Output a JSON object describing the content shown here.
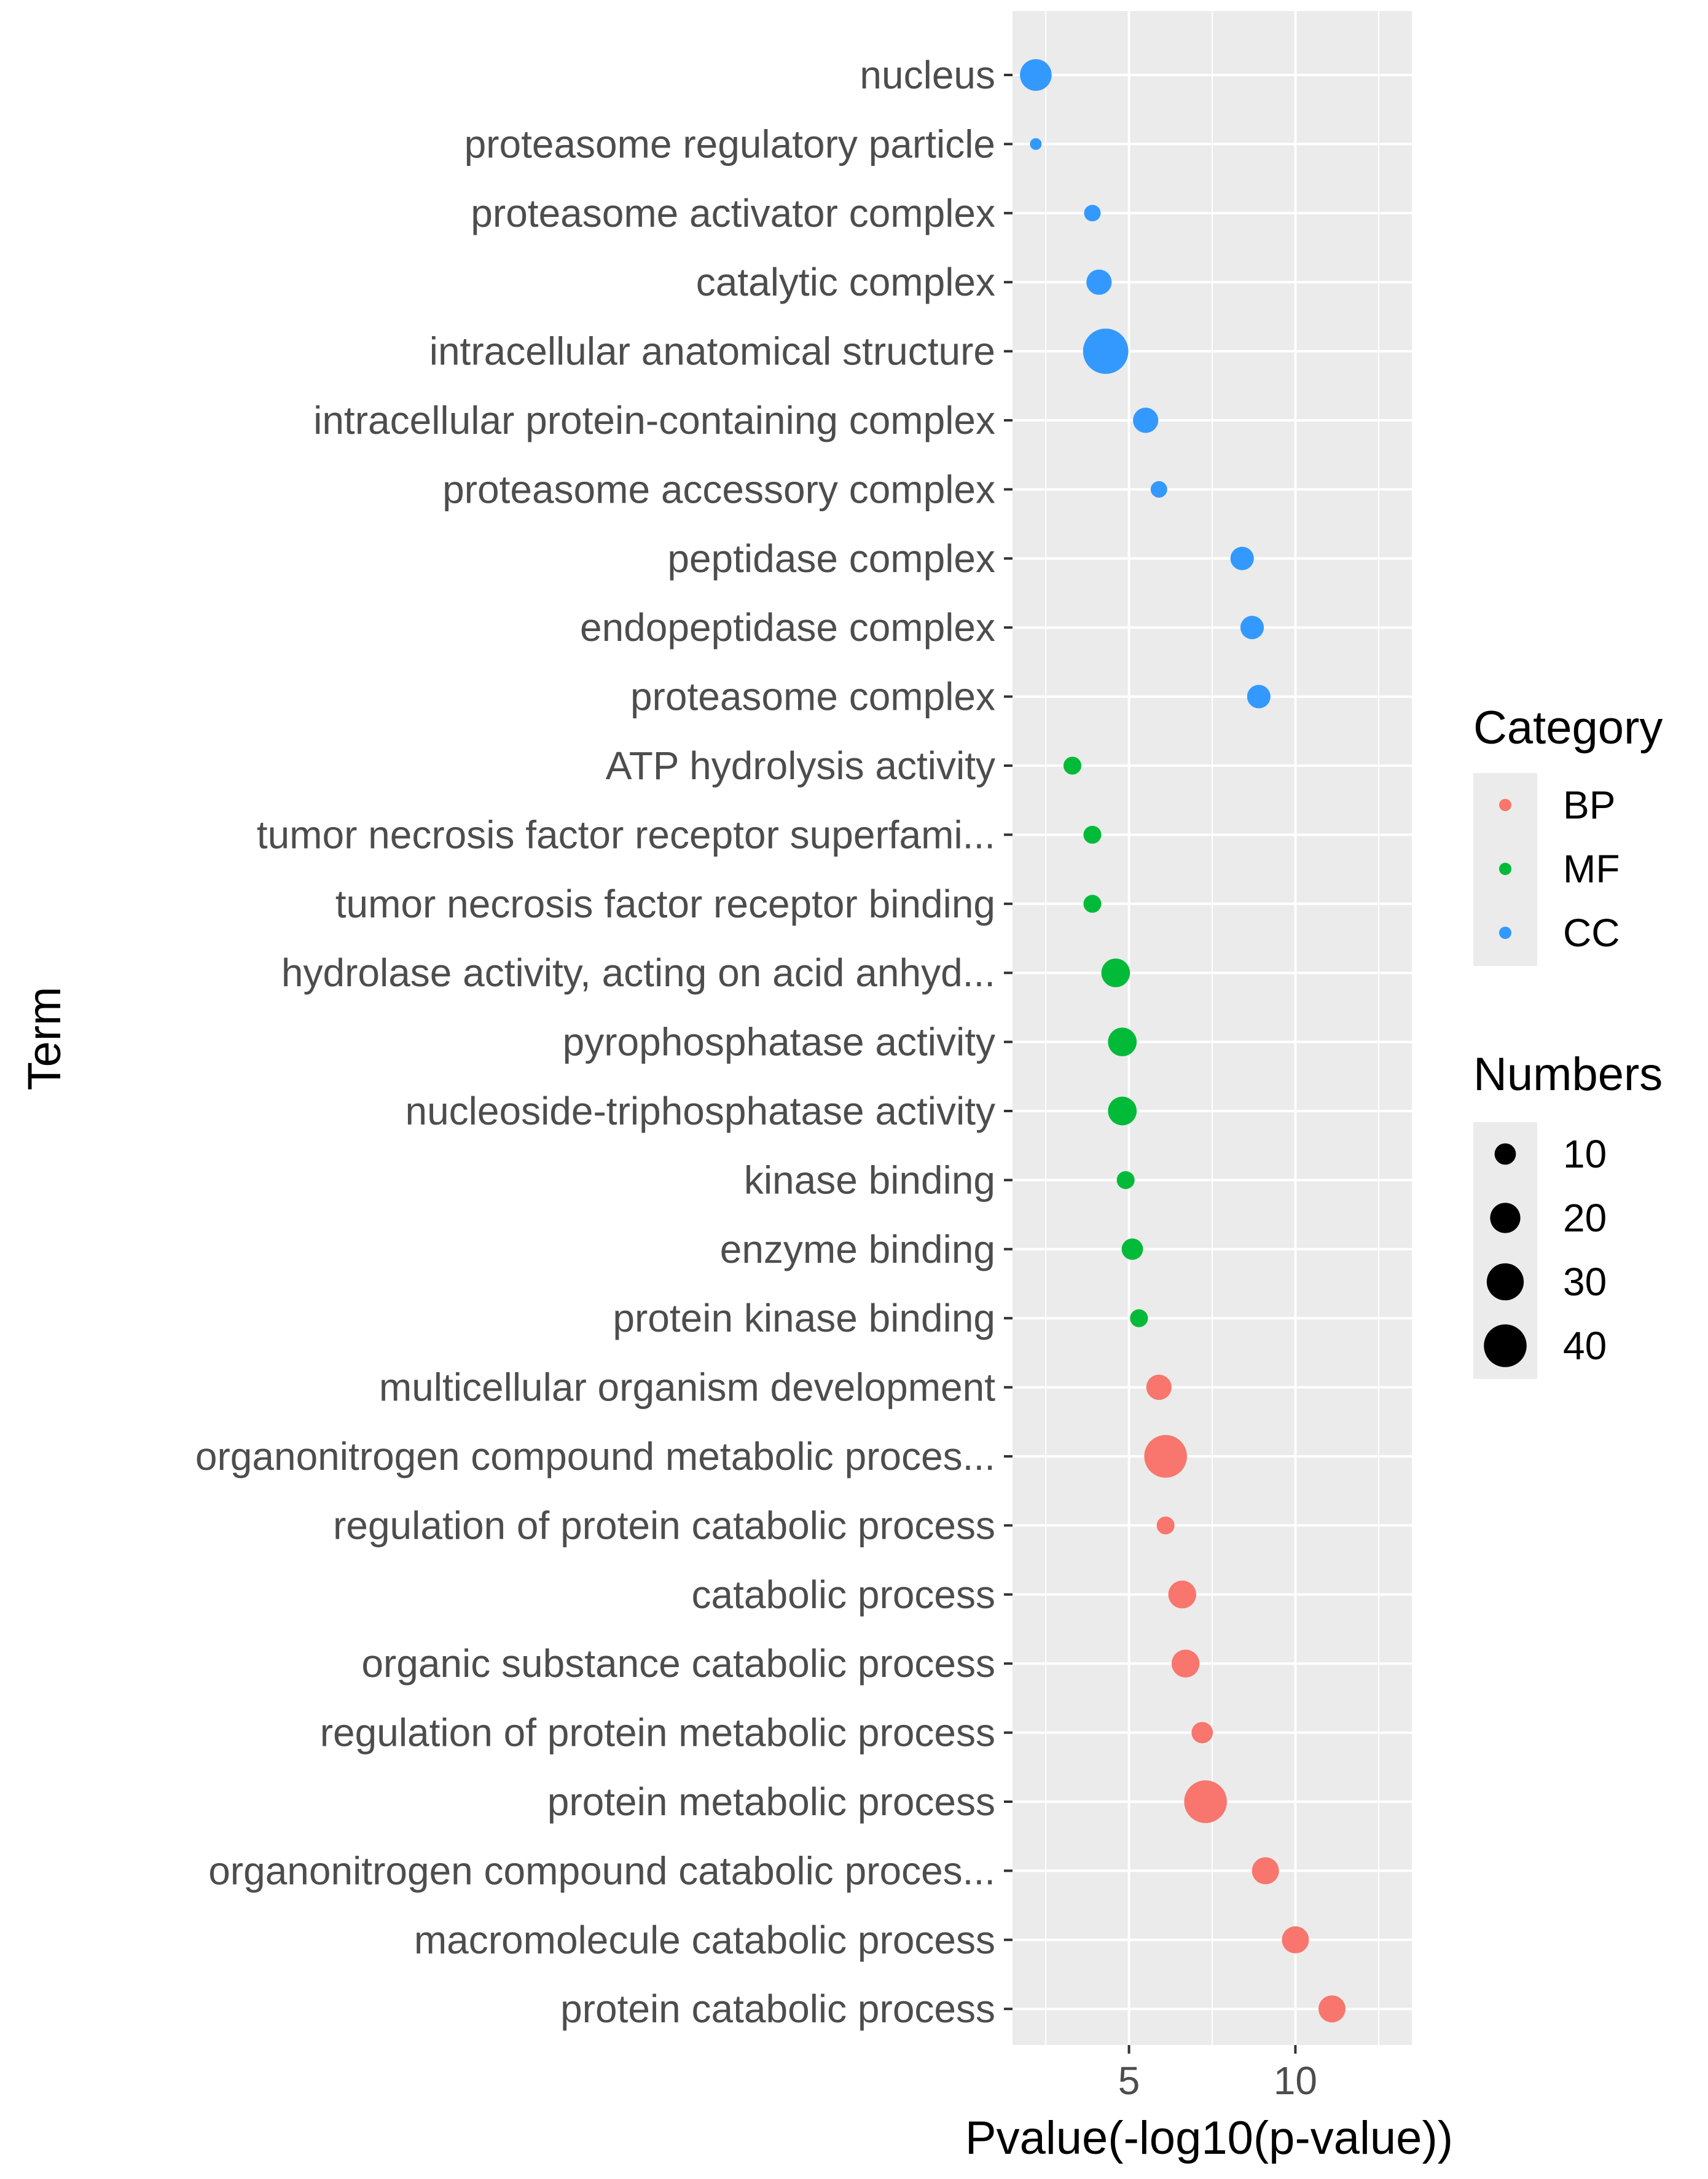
{
  "chart_data": {
    "type": "scatter",
    "xlabel": "Pvalue(-log10(p-value))",
    "ylabel": "Term",
    "xlim": [
      1.5,
      13.5
    ],
    "x_ticks": [
      5,
      10
    ],
    "grid": true,
    "legend_position": "right",
    "category_legend": {
      "title": "Category",
      "entries": [
        {
          "label": "BP",
          "color": "#F8766D"
        },
        {
          "label": "MF",
          "color": "#00BA38"
        },
        {
          "label": "CC",
          "color": "#3399FF"
        }
      ]
    },
    "size_legend": {
      "title": "Numbers",
      "entries": [
        {
          "label": "10",
          "value": 10
        },
        {
          "label": "20",
          "value": 20
        },
        {
          "label": "30",
          "value": 30
        },
        {
          "label": "40",
          "value": 40
        }
      ]
    },
    "points": [
      {
        "term": "nucleus",
        "x": 2.2,
        "numbers": 22,
        "category": "CC"
      },
      {
        "term": "proteasome regulatory particle",
        "x": 2.2,
        "numbers": 3,
        "category": "CC"
      },
      {
        "term": "proteasome activator complex",
        "x": 3.9,
        "numbers": 6,
        "category": "CC"
      },
      {
        "term": "catalytic complex",
        "x": 4.1,
        "numbers": 14,
        "category": "CC"
      },
      {
        "term": "intracellular anatomical structure",
        "x": 4.3,
        "numbers": 45,
        "category": "CC"
      },
      {
        "term": "intracellular protein-containing complex",
        "x": 5.5,
        "numbers": 14,
        "category": "CC"
      },
      {
        "term": "proteasome accessory complex",
        "x": 5.9,
        "numbers": 6,
        "category": "CC"
      },
      {
        "term": "peptidase complex",
        "x": 8.4,
        "numbers": 12,
        "category": "CC"
      },
      {
        "term": "endopeptidase complex",
        "x": 8.7,
        "numbers": 12,
        "category": "CC"
      },
      {
        "term": "proteasome complex",
        "x": 8.9,
        "numbers": 12,
        "category": "CC"
      },
      {
        "term": "ATP hydrolysis activity",
        "x": 3.3,
        "numbers": 7,
        "category": "MF"
      },
      {
        "term": "tumor necrosis factor receptor superfami...",
        "x": 3.9,
        "numbers": 7,
        "category": "MF"
      },
      {
        "term": "tumor necrosis factor receptor binding",
        "x": 3.9,
        "numbers": 7,
        "category": "MF"
      },
      {
        "term": "hydrolase activity, acting on acid anhyd...",
        "x": 4.6,
        "numbers": 18,
        "category": "MF"
      },
      {
        "term": "pyrophosphatase activity",
        "x": 4.8,
        "numbers": 18,
        "category": "MF"
      },
      {
        "term": "nucleoside-triphosphatase activity",
        "x": 4.8,
        "numbers": 18,
        "category": "MF"
      },
      {
        "term": "kinase binding",
        "x": 4.9,
        "numbers": 7,
        "category": "MF"
      },
      {
        "term": "enzyme binding",
        "x": 5.1,
        "numbers": 10,
        "category": "MF"
      },
      {
        "term": "protein kinase binding",
        "x": 5.3,
        "numbers": 7,
        "category": "MF"
      },
      {
        "term": "multicellular organism development",
        "x": 5.9,
        "numbers": 14,
        "category": "BP"
      },
      {
        "term": "organonitrogen compound metabolic proces...",
        "x": 6.1,
        "numbers": 40,
        "category": "BP"
      },
      {
        "term": "regulation of protein catabolic process",
        "x": 6.1,
        "numbers": 7,
        "category": "BP"
      },
      {
        "term": "catabolic process",
        "x": 6.6,
        "numbers": 17,
        "category": "BP"
      },
      {
        "term": "organic substance catabolic process",
        "x": 6.7,
        "numbers": 17,
        "category": "BP"
      },
      {
        "term": "regulation of protein metabolic process",
        "x": 7.2,
        "numbers": 10,
        "category": "BP"
      },
      {
        "term": "protein metabolic process",
        "x": 7.3,
        "numbers": 40,
        "category": "BP"
      },
      {
        "term": "organonitrogen compound catabolic proces...",
        "x": 9.1,
        "numbers": 16,
        "category": "BP"
      },
      {
        "term": "macromolecule catabolic process",
        "x": 10.0,
        "numbers": 16,
        "category": "BP"
      },
      {
        "term": "protein catabolic process",
        "x": 11.1,
        "numbers": 16,
        "category": "BP"
      }
    ]
  }
}
